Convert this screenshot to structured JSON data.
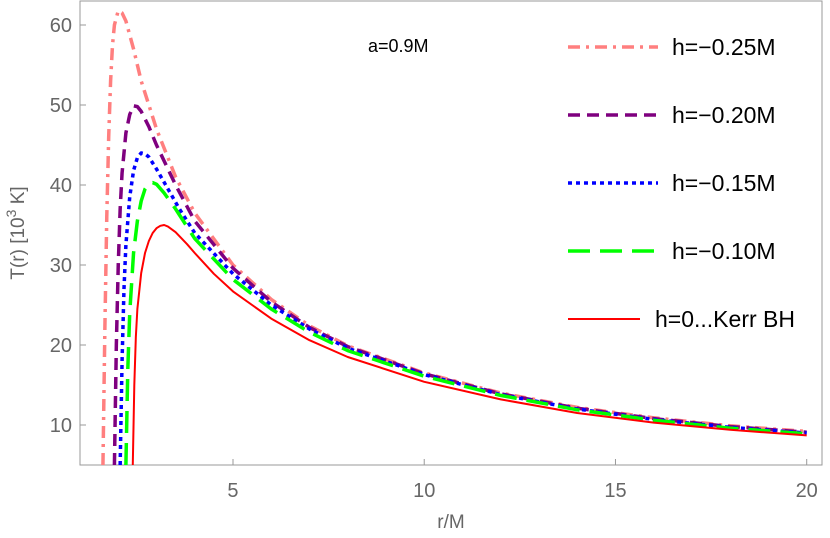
{
  "chart_data": {
    "type": "line",
    "title": "",
    "xlabel": "r/M",
    "ylabel_main": "T(r) [10",
    "ylabel_sup": "3",
    "ylabel_tail": " K]",
    "xlim": [
      1.0,
      20.4
    ],
    "ylim": [
      5,
      63
    ],
    "xticks": [
      5,
      10,
      15,
      20
    ],
    "yticks": [
      10,
      20,
      30,
      40,
      50,
      60
    ],
    "grid": false,
    "legend_position": "top-right",
    "annotation": "a=0.9M",
    "series": [
      {
        "name": "h=−0.25M",
        "color": "#ff7f7f",
        "style": "dashdot",
        "x": [
          1.6,
          1.65,
          1.7,
          1.75,
          1.8,
          1.85,
          1.9,
          2.0,
          2.1,
          2.2,
          2.4,
          2.6,
          3.0,
          3.5,
          4,
          5,
          6,
          7,
          8,
          10,
          12,
          14,
          16,
          18,
          20
        ],
        "y": [
          5,
          22,
          36,
          46,
          53,
          57.5,
          60,
          61.8,
          61.5,
          60.5,
          57,
          53,
          47,
          41,
          36.5,
          30,
          25.7,
          22.4,
          19.9,
          16.5,
          14.0,
          12.2,
          10.9,
          9.9,
          9.2
        ]
      },
      {
        "name": "h=−0.20M",
        "color": "#7f007f",
        "style": "dashed",
        "x": [
          1.9,
          1.95,
          2.0,
          2.05,
          2.1,
          2.2,
          2.3,
          2.4,
          2.5,
          2.6,
          2.8,
          3.0,
          3.5,
          4,
          5,
          6,
          7,
          8,
          10,
          12,
          14,
          16,
          18,
          20
        ],
        "y": [
          5,
          20,
          30,
          37,
          41.5,
          46.5,
          48.8,
          49.9,
          49.8,
          49.2,
          47.3,
          45,
          40,
          35.5,
          29.6,
          25.4,
          22.2,
          19.8,
          16.4,
          13.9,
          12.1,
          10.8,
          9.8,
          9.1
        ]
      },
      {
        "name": "h=−0.15M",
        "color": "#0000ff",
        "style": "dotted",
        "x": [
          2.05,
          2.1,
          2.15,
          2.2,
          2.3,
          2.4,
          2.5,
          2.6,
          2.7,
          2.8,
          3.0,
          3.3,
          3.6,
          4,
          5,
          6,
          7,
          8,
          10,
          12,
          14,
          16,
          18,
          20
        ],
        "y": [
          5,
          18,
          27,
          32.5,
          38.5,
          41.8,
          43.4,
          44.0,
          43.9,
          43.5,
          42,
          39.5,
          37,
          34,
          28.9,
          25.0,
          22.0,
          19.6,
          16.3,
          13.8,
          12.0,
          10.7,
          9.7,
          9.0
        ]
      },
      {
        "name": "h=−0.10M",
        "color": "#00ff00",
        "style": "longdash",
        "x": [
          2.2,
          2.25,
          2.3,
          2.4,
          2.5,
          2.6,
          2.7,
          2.8,
          2.9,
          3.0,
          3.2,
          3.5,
          4,
          5,
          6,
          7,
          8,
          10,
          12,
          14,
          16,
          18,
          20
        ],
        "y": [
          5,
          17,
          24,
          31.5,
          35.5,
          38,
          39.5,
          40.2,
          40.3,
          40.1,
          39,
          37,
          33.3,
          28.2,
          24.5,
          21.6,
          19.3,
          16.1,
          13.7,
          11.9,
          10.6,
          9.6,
          8.9
        ]
      },
      {
        "name": "h=0...Kerr BH",
        "color": "#ff0000",
        "style": "solid",
        "x": [
          2.38,
          2.42,
          2.46,
          2.5,
          2.6,
          2.7,
          2.8,
          2.9,
          3.0,
          3.1,
          3.2,
          3.3,
          3.5,
          3.8,
          4,
          4.5,
          5,
          6,
          7,
          8,
          10,
          12,
          14,
          16,
          18,
          20
        ],
        "y": [
          5,
          15,
          21,
          24.5,
          29,
          31.5,
          33,
          34,
          34.6,
          34.9,
          35.0,
          34.8,
          34.1,
          32.6,
          31.5,
          28.9,
          26.7,
          23.3,
          20.6,
          18.5,
          15.4,
          13.2,
          11.5,
          10.3,
          9.4,
          8.7
        ]
      }
    ]
  }
}
